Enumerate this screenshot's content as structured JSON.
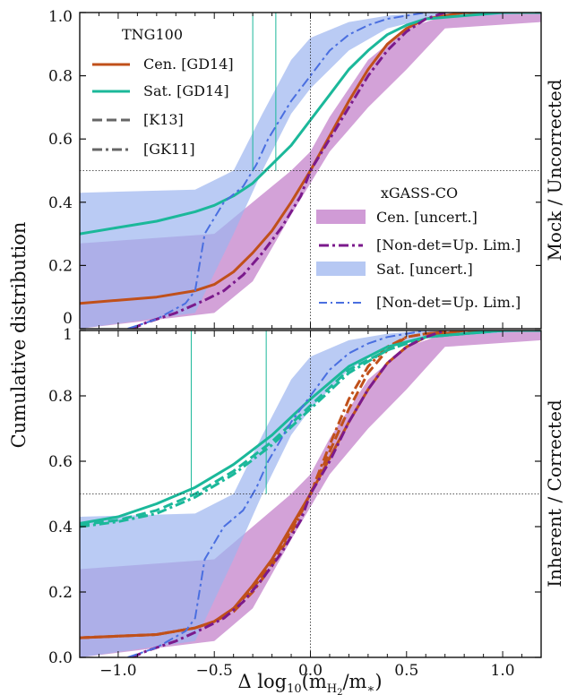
{
  "chart_data": [
    {
      "type": "line",
      "panel": "top",
      "side_label": "Mock / Uncorrected",
      "xlim": [
        -1.2,
        1.2
      ],
      "ylim": [
        0,
        1
      ],
      "y_tick_labels": [
        "0",
        "0.2",
        "0.4",
        "0.6",
        "0.8",
        "1.0"
      ],
      "y_tick_values": [
        0,
        0.2,
        0.4,
        0.6,
        0.8,
        1.0
      ],
      "reference_lines": {
        "horizontal": 0.5,
        "vertical": 0.0
      },
      "median_markers": [
        -0.3,
        -0.18
      ],
      "legend_tng": {
        "title": "TNG100",
        "entries": [
          "Cen. [GD14]",
          "Sat. [GD14]",
          "[K13]",
          "[GK11]"
        ]
      },
      "legend_xgass": {
        "title": "xGASS-CO",
        "entries": [
          "Cen. [uncert.]",
          "[Non-det=Up. Lim.]",
          "Sat. [uncert.]",
          "[Non-det=Up. Lim.]"
        ]
      },
      "series": [
        {
          "name": "Cen. [GD14]",
          "color": "#c0501a",
          "style": "solid",
          "x": [
            -1.2,
            -1.0,
            -0.8,
            -0.6,
            -0.5,
            -0.4,
            -0.3,
            -0.2,
            -0.1,
            0.0,
            0.1,
            0.2,
            0.3,
            0.4,
            0.5,
            0.6,
            0.7,
            0.8,
            1.0,
            1.2
          ],
          "y": [
            0.08,
            0.09,
            0.1,
            0.12,
            0.14,
            0.18,
            0.24,
            0.31,
            0.4,
            0.5,
            0.61,
            0.72,
            0.82,
            0.9,
            0.95,
            0.98,
            0.99,
            1.0,
            1.0,
            1.0
          ]
        },
        {
          "name": "Sat. [GD14]",
          "color": "#1bb89a",
          "style": "solid",
          "x": [
            -1.2,
            -1.0,
            -0.8,
            -0.6,
            -0.5,
            -0.4,
            -0.3,
            -0.2,
            -0.1,
            0.0,
            0.1,
            0.2,
            0.3,
            0.4,
            0.5,
            0.6,
            0.8,
            1.0,
            1.2
          ],
          "y": [
            0.3,
            0.32,
            0.34,
            0.37,
            0.39,
            0.42,
            0.46,
            0.52,
            0.58,
            0.66,
            0.74,
            0.82,
            0.88,
            0.93,
            0.96,
            0.98,
            0.99,
            1.0,
            1.0
          ]
        },
        {
          "name": "Cen. non-det (xGASS)",
          "color": "#7b1a8c",
          "style": "dashdot",
          "x": [
            -0.93,
            -0.85,
            -0.7,
            -0.55,
            -0.45,
            -0.35,
            -0.25,
            -0.15,
            -0.05,
            0.0,
            0.1,
            0.2,
            0.3,
            0.4,
            0.5,
            0.6,
            0.7
          ],
          "y": [
            0.0,
            0.02,
            0.05,
            0.09,
            0.12,
            0.17,
            0.24,
            0.32,
            0.42,
            0.5,
            0.6,
            0.7,
            0.8,
            0.88,
            0.94,
            0.98,
            1.0
          ]
        },
        {
          "name": "Sat. non-det (xGASS)",
          "color": "#4a6fe0",
          "style": "dashdot",
          "x": [
            -0.95,
            -0.8,
            -0.65,
            -0.6,
            -0.55,
            -0.45,
            -0.35,
            -0.28,
            -0.22,
            -0.1,
            0.0,
            0.1,
            0.2,
            0.3,
            0.4,
            0.5,
            0.6
          ],
          "y": [
            0.0,
            0.03,
            0.08,
            0.12,
            0.3,
            0.4,
            0.45,
            0.52,
            0.6,
            0.72,
            0.8,
            0.88,
            0.93,
            0.96,
            0.98,
            0.99,
            1.0
          ]
        }
      ],
      "bands": [
        {
          "name": "Cen. [uncert.]",
          "color": "#c07ac8",
          "x": [
            -1.2,
            -0.5,
            -0.3,
            -0.1,
            0.0,
            0.1,
            0.3,
            0.5,
            0.7,
            1.2
          ],
          "lower": [
            0.0,
            0.05,
            0.15,
            0.36,
            0.46,
            0.56,
            0.7,
            0.82,
            0.95,
            0.97
          ],
          "upper": [
            0.27,
            0.3,
            0.4,
            0.5,
            0.56,
            0.67,
            0.85,
            0.95,
            0.99,
            1.0
          ]
        },
        {
          "name": "Sat. [uncert.]",
          "color": "#9db5ef",
          "x": [
            -1.2,
            -0.6,
            -0.4,
            -0.25,
            -0.1,
            0.0,
            0.2,
            0.4,
            0.6,
            1.2
          ],
          "lower": [
            0.0,
            0.05,
            0.3,
            0.5,
            0.68,
            0.76,
            0.88,
            0.95,
            0.98,
            1.0
          ],
          "upper": [
            0.43,
            0.44,
            0.5,
            0.68,
            0.85,
            0.92,
            0.97,
            0.99,
            1.0,
            1.0
          ]
        }
      ]
    },
    {
      "type": "line",
      "panel": "bottom",
      "side_label": "Inherent / Corrected",
      "xlabel": "Δ log₁₀(m_H₂/m_*)",
      "x_tick_labels": [
        "−1.0",
        "−0.5",
        "0.0",
        "0.5",
        "1.0"
      ],
      "x_tick_values": [
        -1.0,
        -0.5,
        0.0,
        0.5,
        1.0
      ],
      "xlim": [
        -1.2,
        1.2
      ],
      "ylim": [
        0,
        1
      ],
      "y_tick_labels": [
        "0.0",
        "0.2",
        "0.4",
        "0.6",
        "0.8",
        "1"
      ],
      "y_tick_values": [
        0,
        0.2,
        0.4,
        0.6,
        0.8,
        1.0
      ],
      "reference_lines": {
        "horizontal": 0.5,
        "vertical": 0.0
      },
      "median_markers": [
        -0.62,
        -0.23
      ],
      "series": [
        {
          "name": "Cen. [GD14]",
          "color": "#c0501a",
          "style": "solid",
          "x": [
            -1.2,
            -1.0,
            -0.8,
            -0.6,
            -0.5,
            -0.4,
            -0.3,
            -0.2,
            -0.1,
            0.0,
            0.1,
            0.2,
            0.3,
            0.4,
            0.5,
            0.6,
            0.7,
            0.8,
            1.0,
            1.2
          ],
          "y": [
            0.06,
            0.065,
            0.07,
            0.09,
            0.11,
            0.15,
            0.22,
            0.3,
            0.4,
            0.5,
            0.61,
            0.72,
            0.82,
            0.9,
            0.95,
            0.98,
            0.99,
            1.0,
            1.0,
            1.0
          ]
        },
        {
          "name": "Cen. [K13]",
          "color": "#c0501a",
          "style": "dashed",
          "x": [
            -1.2,
            -1.0,
            -0.8,
            -0.6,
            -0.5,
            -0.4,
            -0.3,
            -0.2,
            -0.1,
            0.0,
            0.1,
            0.2,
            0.3,
            0.4,
            0.5,
            0.6,
            0.8,
            1.2
          ],
          "y": [
            0.06,
            0.065,
            0.07,
            0.09,
            0.11,
            0.15,
            0.21,
            0.29,
            0.39,
            0.5,
            0.63,
            0.76,
            0.87,
            0.94,
            0.98,
            0.99,
            1.0,
            1.0
          ]
        },
        {
          "name": "Cen. [GK11]",
          "color": "#c0501a",
          "style": "dashdot",
          "x": [
            -1.2,
            -1.0,
            -0.8,
            -0.6,
            -0.5,
            -0.4,
            -0.3,
            -0.2,
            -0.1,
            0.0,
            0.1,
            0.2,
            0.3,
            0.4,
            0.5,
            0.6,
            0.8,
            1.2
          ],
          "y": [
            0.06,
            0.065,
            0.07,
            0.09,
            0.11,
            0.14,
            0.2,
            0.28,
            0.38,
            0.5,
            0.65,
            0.79,
            0.89,
            0.95,
            0.98,
            0.99,
            1.0,
            1.0
          ]
        },
        {
          "name": "Sat. [GD14]",
          "color": "#1bb89a",
          "style": "solid",
          "x": [
            -1.2,
            -1.0,
            -0.8,
            -0.6,
            -0.4,
            -0.2,
            0.0,
            0.2,
            0.4,
            0.6,
            0.8,
            1.0,
            1.2
          ],
          "y": [
            0.41,
            0.43,
            0.47,
            0.52,
            0.59,
            0.68,
            0.79,
            0.89,
            0.95,
            0.98,
            0.99,
            1.0,
            1.0
          ]
        },
        {
          "name": "Sat. [K13]",
          "color": "#1bb89a",
          "style": "dashed",
          "x": [
            -1.2,
            -1.0,
            -0.8,
            -0.6,
            -0.4,
            -0.2,
            0.0,
            0.2,
            0.4,
            0.6,
            0.8,
            1.0,
            1.2
          ],
          "y": [
            0.405,
            0.42,
            0.45,
            0.5,
            0.57,
            0.66,
            0.77,
            0.88,
            0.94,
            0.98,
            0.99,
            1.0,
            1.0
          ]
        },
        {
          "name": "Sat. [GK11]",
          "color": "#1bb89a",
          "style": "dashdot",
          "x": [
            -1.2,
            -1.0,
            -0.8,
            -0.6,
            -0.4,
            -0.2,
            0.0,
            0.2,
            0.4,
            0.6,
            0.8,
            1.0,
            1.2
          ],
          "y": [
            0.4,
            0.415,
            0.44,
            0.49,
            0.56,
            0.65,
            0.76,
            0.87,
            0.94,
            0.98,
            0.99,
            1.0,
            1.0
          ]
        },
        {
          "name": "Cen. non-det (xGASS)",
          "color": "#7b1a8c",
          "style": "dashdot",
          "x": [
            -0.93,
            -0.85,
            -0.7,
            -0.55,
            -0.45,
            -0.35,
            -0.25,
            -0.15,
            -0.05,
            0.0,
            0.1,
            0.2,
            0.3,
            0.4,
            0.5,
            0.6,
            0.7
          ],
          "y": [
            0.0,
            0.02,
            0.05,
            0.09,
            0.12,
            0.17,
            0.24,
            0.32,
            0.42,
            0.5,
            0.6,
            0.72,
            0.82,
            0.9,
            0.95,
            0.98,
            1.0
          ]
        },
        {
          "name": "Sat. non-det (xGASS)",
          "color": "#4a6fe0",
          "style": "dashdot",
          "x": [
            -0.95,
            -0.8,
            -0.65,
            -0.6,
            -0.55,
            -0.45,
            -0.35,
            -0.28,
            -0.22,
            -0.1,
            0.0,
            0.1,
            0.2,
            0.3,
            0.4,
            0.5,
            0.6
          ],
          "y": [
            0.0,
            0.03,
            0.08,
            0.12,
            0.3,
            0.4,
            0.45,
            0.52,
            0.6,
            0.72,
            0.8,
            0.88,
            0.93,
            0.96,
            0.98,
            0.99,
            1.0
          ]
        }
      ],
      "bands": [
        {
          "name": "Cen. [uncert.]",
          "color": "#c07ac8",
          "x": [
            -1.2,
            -0.5,
            -0.3,
            -0.1,
            0.0,
            0.1,
            0.3,
            0.5,
            0.7,
            1.2
          ],
          "lower": [
            0.0,
            0.05,
            0.15,
            0.36,
            0.46,
            0.56,
            0.7,
            0.82,
            0.95,
            0.97
          ],
          "upper": [
            0.27,
            0.3,
            0.4,
            0.5,
            0.56,
            0.67,
            0.85,
            0.95,
            0.99,
            1.0
          ]
        },
        {
          "name": "Sat. [uncert.]",
          "color": "#9db5ef",
          "x": [
            -1.2,
            -0.6,
            -0.4,
            -0.25,
            -0.1,
            0.0,
            0.2,
            0.4,
            0.6,
            1.2
          ],
          "lower": [
            0.0,
            0.05,
            0.3,
            0.5,
            0.68,
            0.76,
            0.88,
            0.95,
            0.98,
            1.0
          ],
          "upper": [
            0.43,
            0.44,
            0.5,
            0.68,
            0.85,
            0.92,
            0.97,
            0.99,
            1.0,
            1.0
          ]
        }
      ]
    }
  ],
  "figure": {
    "ylabel": "Cumulative distribution",
    "xlabel_parts": {
      "prefix": "Δ log",
      "sub10": "10",
      "open": "(m",
      "subH2": "H",
      "sub2": "2",
      "slash": "/m",
      "substar": "∗",
      "close": ")"
    }
  }
}
